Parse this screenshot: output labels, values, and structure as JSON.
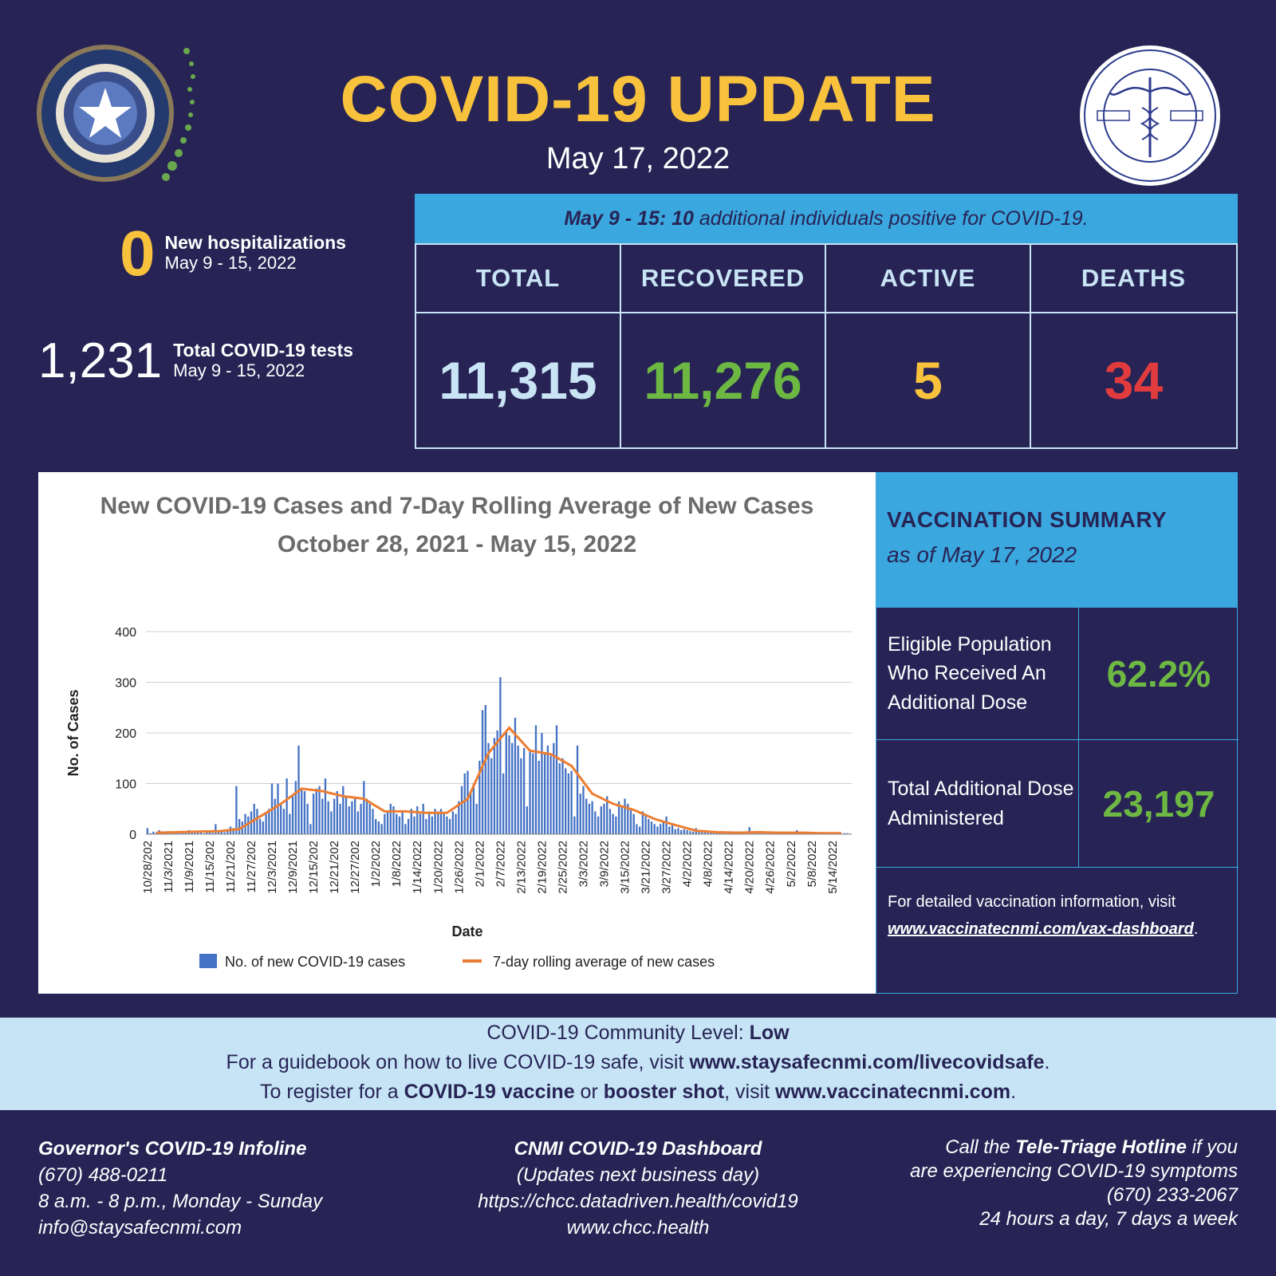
{
  "header": {
    "title": "COVID-19 UPDATE",
    "date": "May 17, 2022"
  },
  "seals": {
    "left_icon": "cnmi-official-seal-icon",
    "right_icon": "commonwealth-healthcare-corp-seal-icon"
  },
  "hospitalizations": {
    "value": "0",
    "label": "New hospitalizations",
    "period": "May 9 - 15, 2022"
  },
  "tests": {
    "value": "1,231",
    "label": "Total COVID-19 tests",
    "period": "May 9 - 15, 2022"
  },
  "banner": {
    "lead": "May 9 - 15: 10",
    "text": " additional individuals positive for COVID-19."
  },
  "totals": {
    "headers": [
      "TOTAL",
      "RECOVERED",
      "ACTIVE",
      "DEATHS"
    ],
    "values": [
      "11,315",
      "11,276",
      "5",
      "34"
    ],
    "colors": [
      "#c8e4f5",
      "#6db843",
      "#f9c23c",
      "#e23b3e"
    ]
  },
  "chart_data": {
    "type": "bar",
    "title": "New COVID-19 Cases and 7-Day Rolling Average of New Cases",
    "subtitle": "October 28, 2021 - May 15, 2022",
    "xlabel": "Date",
    "ylabel": "No. of Cases",
    "ylim": [
      0,
      400
    ],
    "yticks": [
      0,
      100,
      200,
      300,
      400
    ],
    "grid": true,
    "legend_position": "bottom",
    "tick_labels": [
      "10/28/202",
      "11/3/2021",
      "11/9/2021",
      "11/15/202",
      "11/21/202",
      "11/27/202",
      "12/3/2021",
      "12/9/2021",
      "12/15/202",
      "12/21/202",
      "12/27/202",
      "1/2/2022",
      "1/8/2022",
      "1/14/2022",
      "1/20/2022",
      "1/26/2022",
      "2/1/2022",
      "2/7/2022",
      "2/13/2022",
      "2/19/2022",
      "2/25/2022",
      "3/3/2022",
      "3/9/2022",
      "3/15/2022",
      "3/21/2022",
      "3/27/2022",
      "4/2/2022",
      "4/8/2022",
      "4/14/2022",
      "4/20/2022",
      "4/26/2022",
      "5/2/2022",
      "5/8/2022",
      "5/14/2022"
    ],
    "series": [
      {
        "name": "No. of new COVID-19 cases",
        "type": "bar",
        "color": "#4472c4",
        "weekly_values": [
          [
            12,
            2,
            5,
            3,
            8,
            4,
            2
          ],
          [
            6,
            3,
            4,
            2,
            5,
            3,
            4
          ],
          [
            8,
            4,
            3,
            6,
            5,
            2,
            4
          ],
          [
            5,
            3,
            20,
            6,
            8,
            4,
            10
          ],
          [
            15,
            12,
            95,
            30,
            25,
            40,
            35
          ],
          [
            45,
            60,
            50,
            30,
            25,
            40,
            50
          ],
          [
            100,
            70,
            100,
            60,
            50,
            110,
            40
          ],
          [
            75,
            105,
            175,
            90,
            85,
            60,
            20
          ],
          [
            80,
            90,
            95,
            70,
            110,
            65,
            45
          ],
          [
            70,
            85,
            60,
            95,
            75,
            55,
            65
          ],
          [
            70,
            45,
            60,
            105,
            70,
            60,
            50
          ],
          [
            30,
            25,
            20,
            40,
            45,
            60,
            55
          ],
          [
            40,
            35,
            45,
            20,
            30,
            50,
            35
          ],
          [
            55,
            40,
            60,
            30,
            45,
            35,
            50
          ],
          [
            45,
            50,
            40,
            35,
            30,
            45,
            40
          ],
          [
            65,
            95,
            120,
            125,
            85,
            100,
            60
          ],
          [
            145,
            245,
            255,
            180,
            150,
            190,
            205
          ],
          [
            310,
            120,
            205,
            195,
            180,
            230,
            175
          ],
          [
            150,
            170,
            55,
            165,
            160,
            215,
            145
          ],
          [
            200,
            160,
            175,
            155,
            180,
            215,
            140
          ],
          [
            150,
            130,
            120,
            125,
            35,
            175,
            80
          ],
          [
            95,
            70,
            60,
            65,
            45,
            35,
            55
          ],
          [
            60,
            75,
            50,
            40,
            35,
            65,
            55
          ],
          [
            70,
            60,
            50,
            40,
            20,
            15,
            45
          ],
          [
            40,
            30,
            25,
            20,
            15,
            20,
            25
          ],
          [
            35,
            15,
            20,
            10,
            12,
            8,
            10
          ],
          [
            8,
            6,
            5,
            12,
            8,
            6,
            4
          ],
          [
            5,
            4,
            6,
            3,
            4,
            5,
            3
          ],
          [
            4,
            3,
            3,
            5,
            4,
            2,
            3
          ],
          [
            14,
            5,
            4,
            3,
            6,
            4,
            3
          ],
          [
            5,
            4,
            3,
            5,
            3,
            4,
            2
          ],
          [
            3,
            4,
            8,
            3,
            2,
            3,
            4
          ],
          [
            3,
            2,
            4,
            3,
            2,
            3,
            2
          ],
          [
            2,
            3,
            2,
            1,
            2,
            2,
            1
          ]
        ]
      },
      {
        "name": "7-day rolling average of new cases",
        "type": "line",
        "color": "#ed7d31",
        "weekly_values": [
          3,
          4,
          5,
          6,
          10,
          35,
          60,
          90,
          85,
          75,
          70,
          45,
          45,
          42,
          42,
          70,
          160,
          210,
          165,
          158,
          135,
          80,
          60,
          48,
          30,
          18,
          7,
          4,
          3,
          4,
          3,
          3,
          2,
          2
        ]
      }
    ]
  },
  "vaccination": {
    "title": "VACCINATION SUMMARY",
    "as_of": "as of May 17, 2022",
    "rows": [
      {
        "label": "Eligible Population Who Received An Additional Dose",
        "value": "62.2%"
      },
      {
        "label": "Total Additional Dose Administered",
        "value": "23,197"
      }
    ],
    "note": "For detailed vaccination information, visit",
    "link": "www.vaccinatecnmi.com/vax-dashboard",
    "link_suffix": "."
  },
  "info_band": {
    "line1_text": "COVID-19 Community Level: ",
    "line1_bold": "Low",
    "line2_text": "For a guidebook on how to live COVID-19 safe, visit ",
    "line2_bold": "www.staysafecnmi.com/livecovidsafe",
    "line2_end": ".",
    "line3_a": "To register for a ",
    "line3_b": "COVID-19 vaccine",
    "line3_c": " or ",
    "line3_d": "booster shot",
    "line3_e": ", visit ",
    "line3_f": "www.vaccinatecnmi.com",
    "line3_g": "."
  },
  "footer": {
    "left": {
      "title": "Governor's COVID-19 Infoline",
      "phone": "(670) 488-0211",
      "hours": "8 a.m. - 8 p.m., Monday - Sunday",
      "email": "info@staysafecnmi.com"
    },
    "middle": {
      "title": "CNMI COVID-19 Dashboard",
      "note": "(Updates next business day)",
      "url1": "https://chcc.datadriven.health/covid19",
      "url2": "www.chcc.health"
    },
    "right": {
      "pre": "Call the ",
      "bold": "Tele-Triage Hotline",
      "post": " if you",
      "line2": "are experiencing COVID-19 symptoms",
      "phone": "(670) 233-2067",
      "hours": "24 hours a day, 7 days a week"
    }
  }
}
